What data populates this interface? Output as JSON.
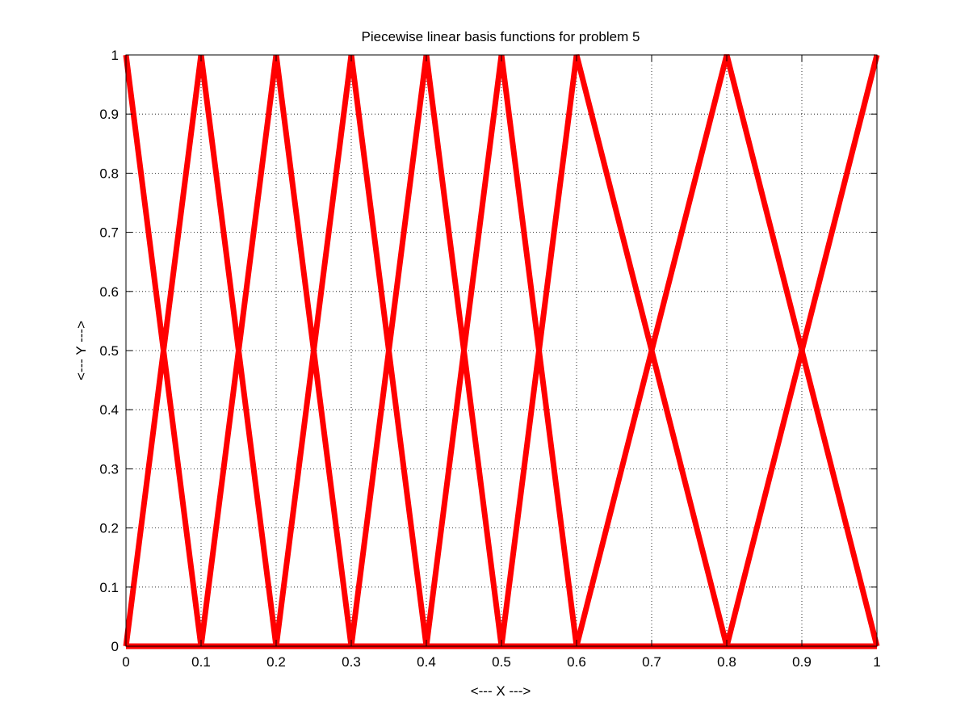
{
  "chart_data": {
    "type": "line",
    "title": "Piecewise linear basis functions for problem 5",
    "xlabel": "<--- X --->",
    "ylabel": "<--- Y --->",
    "xlim": [
      0,
      1
    ],
    "ylim": [
      0,
      1
    ],
    "xticks": [
      0,
      0.1,
      0.2,
      0.3,
      0.4,
      0.5,
      0.6,
      0.7,
      0.8,
      0.9,
      1
    ],
    "xtick_labels": [
      "0",
      "0.1",
      "0.2",
      "0.3",
      "0.4",
      "0.5",
      "0.6",
      "0.7",
      "0.8",
      "0.9",
      "1"
    ],
    "yticks": [
      0,
      0.1,
      0.2,
      0.3,
      0.4,
      0.5,
      0.6,
      0.7,
      0.8,
      0.9,
      1
    ],
    "ytick_labels": [
      "0",
      "0.1",
      "0.2",
      "0.3",
      "0.4",
      "0.5",
      "0.6",
      "0.7",
      "0.8",
      "0.9",
      "1"
    ],
    "grid": true,
    "line_color": "#ff0000",
    "series": [
      {
        "x": [
          0,
          0.1,
          1
        ],
        "y": [
          1,
          0,
          0
        ]
      },
      {
        "x": [
          0,
          0.1,
          0.2,
          1
        ],
        "y": [
          0,
          1,
          0,
          0
        ]
      },
      {
        "x": [
          0,
          0.1,
          0.2,
          0.3,
          1
        ],
        "y": [
          0,
          0,
          1,
          0,
          0
        ]
      },
      {
        "x": [
          0,
          0.2,
          0.3,
          0.4,
          1
        ],
        "y": [
          0,
          0,
          1,
          0,
          0
        ]
      },
      {
        "x": [
          0,
          0.3,
          0.4,
          0.5,
          1
        ],
        "y": [
          0,
          0,
          1,
          0,
          0
        ]
      },
      {
        "x": [
          0,
          0.4,
          0.5,
          0.6,
          1
        ],
        "y": [
          0,
          0,
          1,
          0,
          0
        ]
      },
      {
        "x": [
          0,
          0.5,
          0.6,
          0.8,
          1
        ],
        "y": [
          0,
          0,
          1,
          0,
          0
        ]
      },
      {
        "x": [
          0,
          0.6,
          0.8,
          1
        ],
        "y": [
          0,
          0,
          1,
          0
        ]
      },
      {
        "x": [
          0,
          0.8,
          1
        ],
        "y": [
          0,
          0,
          1
        ]
      }
    ]
  }
}
